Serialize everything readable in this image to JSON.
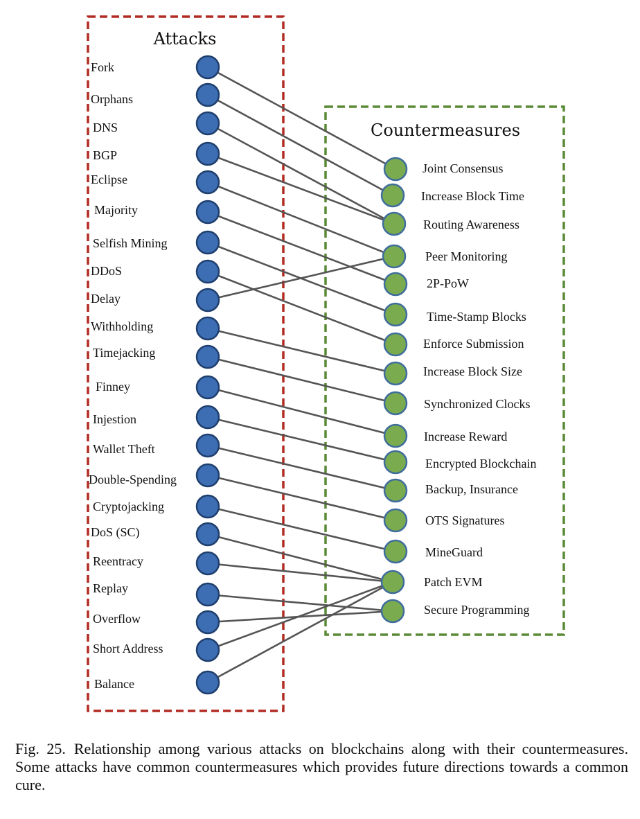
{
  "attacks_title": "Attacks",
  "countermeasures_title": "Countermeasures",
  "attacks": [
    "Fork",
    "Orphans",
    "DNS",
    "BGP",
    "Eclipse",
    "Majority",
    "Selfish Mining",
    "DDoS",
    "Delay",
    "Withholding",
    "Timejacking",
    "Finney",
    "Injestion",
    "Wallet Theft",
    "Double-Spending",
    "Cryptojacking",
    "DoS (SC)",
    "Reentracy",
    "Replay",
    "Overflow",
    "Short Address",
    "Balance"
  ],
  "countermeasures": [
    "Joint Consensus",
    "Increase Block Time",
    "Routing Awareness",
    "Peer Monitoring",
    "2P-PoW",
    "Time-Stamp Blocks",
    "Enforce Submission",
    "Increase Block Size",
    "Synchronized Clocks",
    "Increase Reward",
    "Encrypted Blockchain",
    "Backup, Insurance",
    "OTS Signatures",
    "MineGuard",
    "Patch EVM",
    "Secure Programming"
  ],
  "links": [
    [
      0,
      0
    ],
    [
      1,
      1
    ],
    [
      2,
      2
    ],
    [
      3,
      2
    ],
    [
      4,
      3
    ],
    [
      5,
      4
    ],
    [
      6,
      5
    ],
    [
      7,
      6
    ],
    [
      8,
      3
    ],
    [
      9,
      7
    ],
    [
      10,
      8
    ],
    [
      11,
      9
    ],
    [
      12,
      10
    ],
    [
      13,
      11
    ],
    [
      14,
      12
    ],
    [
      15,
      13
    ],
    [
      16,
      14
    ],
    [
      17,
      14
    ],
    [
      18,
      15
    ],
    [
      19,
      15
    ],
    [
      20,
      14
    ],
    [
      21,
      14
    ]
  ],
  "colors": {
    "attack_node": "#3d6eb3",
    "countermeasure_node": "#7aac4f",
    "attacks_border": "#b22b23",
    "countermeasures_border": "#5a8a36",
    "link": "#555555"
  },
  "caption": {
    "figure_number": "Fig. 25.",
    "text": "Relationship among various attacks on blockchains along with their countermeasures. Some attacks have common countermeasures which provides future directions towards a common cure."
  }
}
